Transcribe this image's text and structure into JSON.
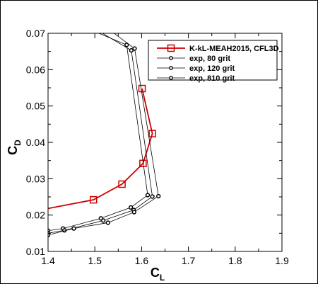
{
  "chart_data": {
    "type": "line",
    "xlabel": "C",
    "xlabel_sub": "L",
    "ylabel": "C",
    "ylabel_sub": "D",
    "xlim": [
      1.4,
      1.9
    ],
    "ylim": [
      0.01,
      0.07
    ],
    "xticks": [
      "1.4",
      "1.5",
      "1.6",
      "1.7",
      "1.8",
      "1.9"
    ],
    "yticks": [
      "0.01",
      "0.02",
      "0.03",
      "0.04",
      "0.05",
      "0.06",
      "0.07"
    ],
    "grid": false,
    "legend_position": "top-right",
    "series": [
      {
        "name": "K-kL-MEAH2015, CFL3D",
        "color": "#cc0000",
        "marker": "square",
        "line_start": [
          1.4,
          0.0218
        ],
        "x": [
          1.497,
          1.558,
          1.603,
          1.623,
          1.601
        ],
        "y": [
          0.0242,
          0.0285,
          0.0342,
          0.0424,
          0.0548
        ]
      },
      {
        "name": "exp, 80 grit",
        "color": "#000000",
        "marker": "circle",
        "x": [
          1.4,
          1.432,
          1.513,
          1.577,
          1.613,
          1.568,
          1.412
        ],
        "y": [
          0.0157,
          0.0163,
          0.0191,
          0.0221,
          0.0255,
          0.0668,
          0.0752
        ]
      },
      {
        "name": "exp, 120 grit",
        "color": "#000000",
        "marker": "circle",
        "x": [
          1.4,
          1.435,
          1.518,
          1.583,
          1.623,
          1.578,
          1.448
        ],
        "y": [
          0.015,
          0.0158,
          0.0185,
          0.0214,
          0.0251,
          0.0653,
          0.0752
        ]
      },
      {
        "name": "exp, 810 grit",
        "color": "#000000",
        "marker": "circle",
        "x": [
          1.4,
          1.455,
          1.528,
          1.584,
          1.636,
          1.585,
          1.487
        ],
        "y": [
          0.0145,
          0.0163,
          0.0179,
          0.0208,
          0.0252,
          0.0658,
          0.0752
        ]
      }
    ]
  }
}
